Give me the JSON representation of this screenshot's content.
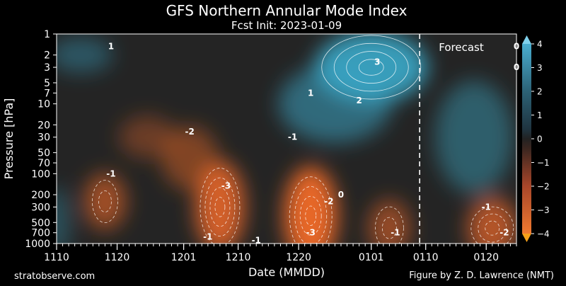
{
  "chart_data": {
    "type": "heatmap",
    "title": "GFS Northern Annular Mode Index",
    "subtitle": "Fcst Init: 2023-01-09",
    "xlabel": "Date (MMDD)",
    "ylabel": "Pressure [hPa]",
    "x_start": "2022-11-10",
    "x_end": "2023-01-25",
    "x_tick_labels": [
      "1110",
      "1120",
      "1201",
      "1210",
      "1220",
      "0101",
      "0110",
      "0120"
    ],
    "x_tick_dates": [
      "2022-11-10",
      "2022-11-20",
      "2022-12-01",
      "2022-12-10",
      "2022-12-20",
      "2023-01-01",
      "2023-01-10",
      "2023-01-20"
    ],
    "y_scale": "log",
    "y_inverted": true,
    "ylim": [
      1000,
      1
    ],
    "y_tick_labels": [
      "1",
      "2",
      "3",
      "5",
      "7",
      "10",
      "20",
      "30",
      "50",
      "70",
      "100",
      "200",
      "300",
      "500",
      "700",
      "1000"
    ],
    "y_tick_values": [
      1,
      2,
      3,
      5,
      7,
      10,
      20,
      30,
      50,
      70,
      100,
      200,
      300,
      500,
      700,
      1000
    ],
    "forecast_start": "2023-01-09",
    "annotation": "Forecast",
    "colorbar": {
      "ticks": [
        4,
        3,
        2,
        1,
        0,
        -1,
        -2,
        -3,
        -4
      ],
      "tick_labels": [
        "4",
        "3",
        "2",
        "1",
        "0",
        "−1",
        "−2",
        "−3",
        "−4"
      ],
      "range": [
        -4,
        4
      ],
      "negative_color": "#f06a28",
      "positive_color": "#3aa3c2",
      "neutral_color": "#222222"
    },
    "contour_labels": [
      {
        "text": "-1",
        "date": "2022-11-19",
        "p": 100
      },
      {
        "text": "-2",
        "date": "2022-12-02",
        "p": 25
      },
      {
        "text": "-3",
        "date": "2022-12-08",
        "p": 150
      },
      {
        "text": "-1",
        "date": "2022-12-05",
        "p": 800
      },
      {
        "text": "-1",
        "date": "2022-12-13",
        "p": 900
      },
      {
        "text": "-1",
        "date": "2022-12-19",
        "p": 30
      },
      {
        "text": "-3",
        "date": "2022-12-22",
        "p": 700
      },
      {
        "text": "-2",
        "date": "2022-12-25",
        "p": 250
      },
      {
        "text": "0",
        "date": "2022-12-27",
        "p": 200
      },
      {
        "text": "1",
        "date": "2022-12-22",
        "p": 7
      },
      {
        "text": "2",
        "date": "2022-12-30",
        "p": 9
      },
      {
        "text": "3",
        "date": "2023-01-02",
        "p": 2.5
      },
      {
        "text": "-1",
        "date": "2023-01-05",
        "p": 700
      },
      {
        "text": "1",
        "date": "2022-11-19",
        "p": 1.5
      },
      {
        "text": "-1",
        "date": "2023-01-20",
        "p": 300
      },
      {
        "text": "-2",
        "date": "2023-01-23",
        "p": 700
      },
      {
        "text": "0",
        "date": "2023-01-25",
        "p": 1.5
      },
      {
        "text": "0",
        "date": "2023-01-25",
        "p": 3
      }
    ]
  },
  "footer": {
    "left": "stratobserve.com",
    "right": "Figure by Z. D. Lawrence (NMT)"
  }
}
